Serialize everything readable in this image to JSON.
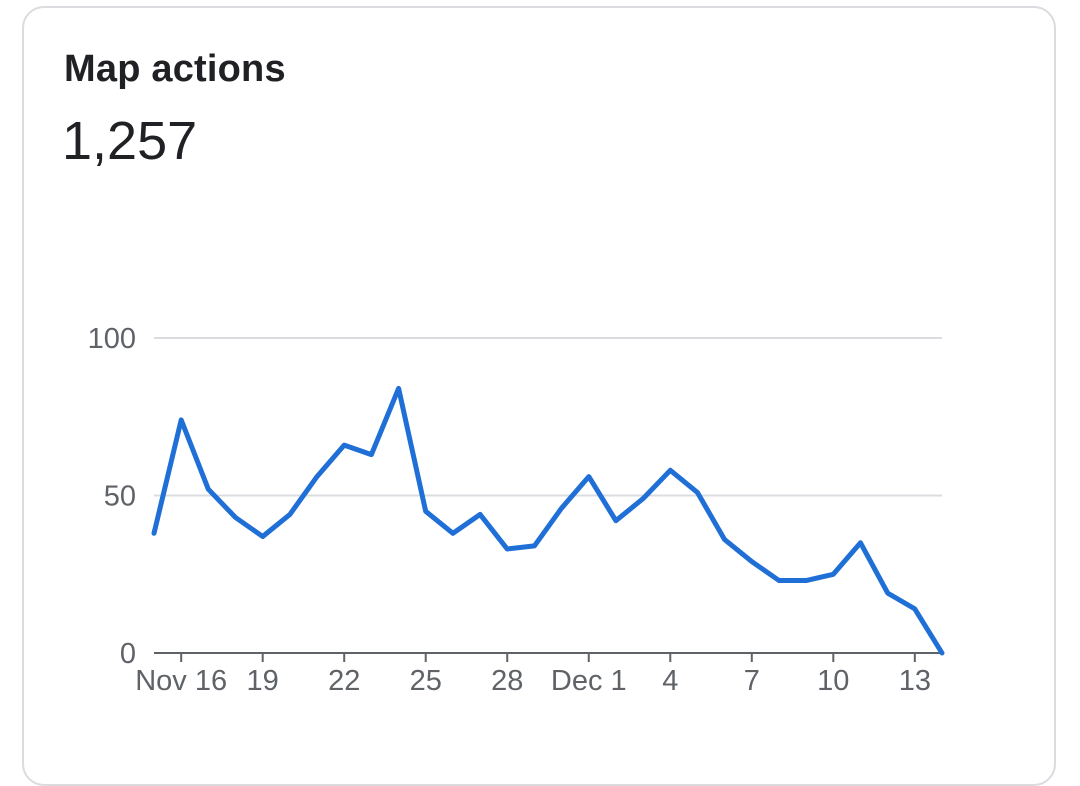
{
  "card": {
    "title": "Map actions",
    "total": "1,257"
  },
  "colors": {
    "line": "#1f6fd6",
    "grid": "#dadce0",
    "axis": "#5f6368",
    "text": "#202124"
  },
  "chart_data": {
    "type": "line",
    "title": "",
    "xlabel": "",
    "ylabel": "",
    "ylim": [
      0,
      100
    ],
    "y_ticks": [
      0,
      50,
      100
    ],
    "grid": true,
    "x_tick_labels": [
      {
        "day": 1,
        "label": "Nov 16"
      },
      {
        "day": 4,
        "label": "19"
      },
      {
        "day": 7,
        "label": "22"
      },
      {
        "day": 10,
        "label": "25"
      },
      {
        "day": 13,
        "label": "28"
      },
      {
        "day": 16,
        "label": "Dec 1"
      },
      {
        "day": 19,
        "label": "4"
      },
      {
        "day": 22,
        "label": "7"
      },
      {
        "day": 25,
        "label": "10"
      },
      {
        "day": 28,
        "label": "13"
      }
    ],
    "dates": [
      "Nov 15",
      "Nov 16",
      "Nov 17",
      "Nov 18",
      "Nov 19",
      "Nov 20",
      "Nov 21",
      "Nov 22",
      "Nov 23",
      "Nov 24",
      "Nov 25",
      "Nov 26",
      "Nov 27",
      "Nov 28",
      "Nov 29",
      "Nov 30",
      "Dec 1",
      "Dec 2",
      "Dec 3",
      "Dec 4",
      "Dec 5",
      "Dec 6",
      "Dec 7",
      "Dec 8",
      "Dec 9",
      "Dec 10",
      "Dec 11",
      "Dec 12",
      "Dec 13",
      "Dec 14"
    ],
    "series": [
      {
        "values": [
          38,
          74,
          52,
          43,
          37,
          44,
          56,
          66,
          63,
          84,
          45,
          38,
          44,
          33,
          34,
          46,
          56,
          42,
          49,
          58,
          51,
          36,
          29,
          23,
          23,
          25,
          35,
          19,
          14,
          0
        ]
      }
    ]
  }
}
